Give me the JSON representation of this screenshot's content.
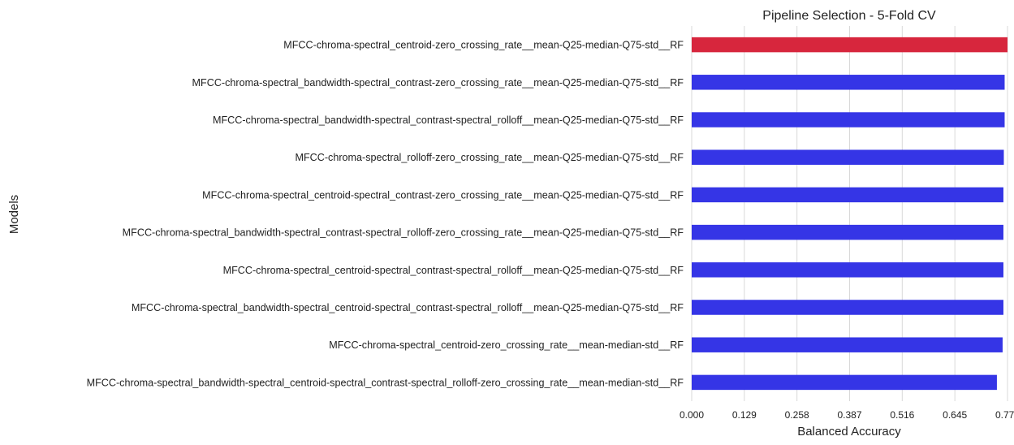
{
  "chart_data": {
    "type": "bar",
    "orientation": "horizontal",
    "title": "Pipeline Selection - 5-Fold CV",
    "xlabel": "Balanced Accuracy",
    "ylabel": "Models",
    "xlim": [
      0,
      0.774
    ],
    "xticks": [
      "0.000",
      "0.129",
      "0.258",
      "0.387",
      "0.516",
      "0.645",
      "0.774"
    ],
    "grid": "vertical",
    "highlight_color": "#d7263d",
    "bar_color": "#3535e6",
    "categories": [
      "MFCC-chroma-spectral_centroid-zero_crossing_rate__mean-Q25-median-Q75-std__RF",
      "MFCC-chroma-spectral_bandwidth-spectral_contrast-zero_crossing_rate__mean-Q25-median-Q75-std__RF",
      "MFCC-chroma-spectral_bandwidth-spectral_contrast-spectral_rolloff__mean-Q25-median-Q75-std__RF",
      "MFCC-chroma-spectral_rolloff-zero_crossing_rate__mean-Q25-median-Q75-std__RF",
      "MFCC-chroma-spectral_centroid-spectral_contrast-zero_crossing_rate__mean-Q25-median-Q75-std__RF",
      "MFCC-chroma-spectral_bandwidth-spectral_contrast-spectral_rolloff-zero_crossing_rate__mean-Q25-median-Q75-std__RF",
      "MFCC-chroma-spectral_centroid-spectral_contrast-spectral_rolloff__mean-Q25-median-Q75-std__RF",
      "MFCC-chroma-spectral_bandwidth-spectral_centroid-spectral_contrast-spectral_rolloff__mean-Q25-median-Q75-std__RF",
      "MFCC-chroma-spectral_centroid-zero_crossing_rate__mean-median-std__RF",
      "MFCC-chroma-spectral_bandwidth-spectral_centroid-spectral_contrast-spectral_rolloff-zero_crossing_rate__mean-median-std__RF"
    ],
    "values": [
      0.774,
      0.767,
      0.767,
      0.765,
      0.764,
      0.764,
      0.764,
      0.764,
      0.762,
      0.748
    ],
    "highlight_index": 0
  }
}
